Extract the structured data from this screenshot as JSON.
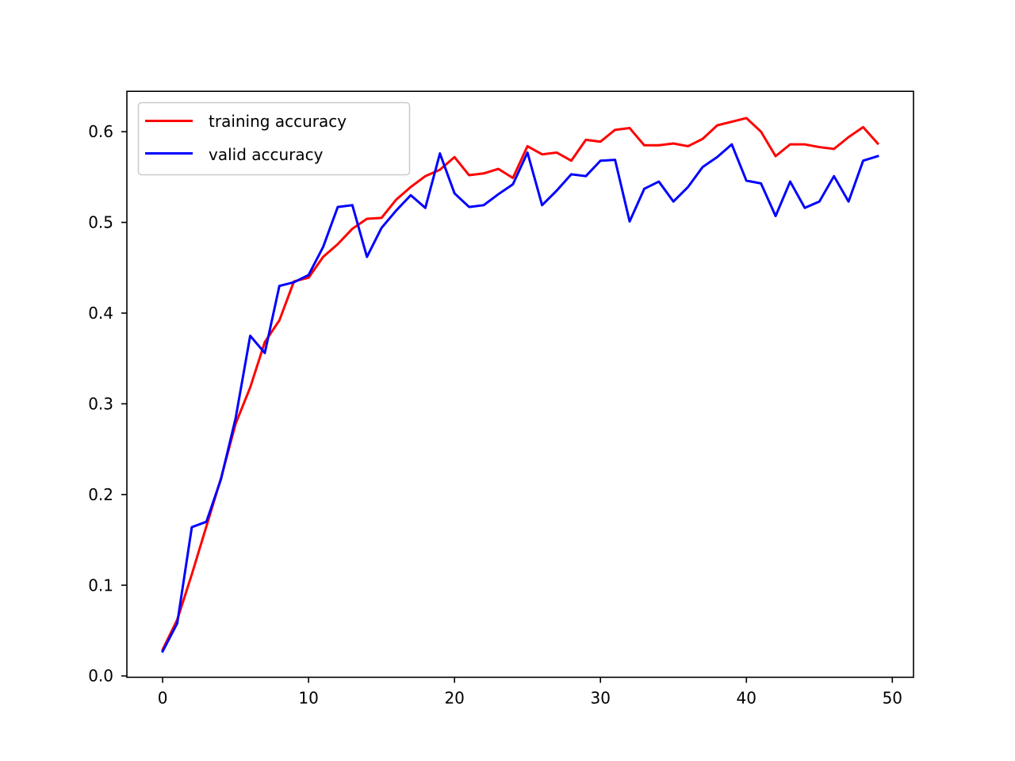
{
  "chart_data": {
    "type": "line",
    "title": "",
    "xlabel": "",
    "ylabel": "",
    "xlim": [
      -2.45,
      51.45
    ],
    "ylim": [
      -0.0015,
      0.6445
    ],
    "xticks": [
      0,
      10,
      20,
      30,
      40,
      50
    ],
    "yticks": [
      0.0,
      0.1,
      0.2,
      0.3,
      0.4,
      0.5,
      0.6
    ],
    "xtick_labels": [
      "0",
      "10",
      "20",
      "30",
      "40",
      "50"
    ],
    "ytick_labels": [
      "0.0",
      "0.1",
      "0.2",
      "0.3",
      "0.4",
      "0.5",
      "0.6"
    ],
    "grid": false,
    "legend": "upper-left",
    "x": [
      0,
      1,
      2,
      3,
      4,
      5,
      6,
      7,
      8,
      9,
      10,
      11,
      12,
      13,
      14,
      15,
      16,
      17,
      18,
      19,
      20,
      21,
      22,
      23,
      24,
      25,
      26,
      27,
      28,
      29,
      30,
      31,
      32,
      33,
      34,
      35,
      36,
      37,
      38,
      39,
      40,
      41,
      42,
      43,
      44,
      45,
      46,
      47,
      48,
      49
    ],
    "series": [
      {
        "name": "training accuracy",
        "color": "#ff0000",
        "values": [
          0.029,
          0.062,
          0.112,
          0.165,
          0.218,
          0.278,
          0.318,
          0.368,
          0.392,
          0.435,
          0.439,
          0.462,
          0.476,
          0.493,
          0.504,
          0.505,
          0.525,
          0.539,
          0.551,
          0.558,
          0.572,
          0.552,
          0.554,
          0.559,
          0.549,
          0.584,
          0.575,
          0.577,
          0.568,
          0.591,
          0.589,
          0.602,
          0.604,
          0.585,
          0.585,
          0.587,
          0.584,
          0.592,
          0.607,
          0.611,
          0.615,
          0.6,
          0.573,
          0.586,
          0.586,
          0.583,
          0.581,
          0.594,
          0.605,
          0.587
        ]
      },
      {
        "name": "valid accuracy",
        "color": "#0000ff",
        "values": [
          0.027,
          0.058,
          0.164,
          0.17,
          0.217,
          0.284,
          0.375,
          0.356,
          0.43,
          0.434,
          0.442,
          0.473,
          0.517,
          0.519,
          0.462,
          0.494,
          0.513,
          0.53,
          0.516,
          0.576,
          0.532,
          0.517,
          0.519,
          0.531,
          0.542,
          0.577,
          0.519,
          0.535,
          0.553,
          0.551,
          0.568,
          0.569,
          0.501,
          0.537,
          0.545,
          0.523,
          0.539,
          0.561,
          0.572,
          0.586,
          0.546,
          0.543,
          0.507,
          0.545,
          0.516,
          0.523,
          0.551,
          0.523,
          0.568,
          0.573
        ]
      }
    ]
  }
}
